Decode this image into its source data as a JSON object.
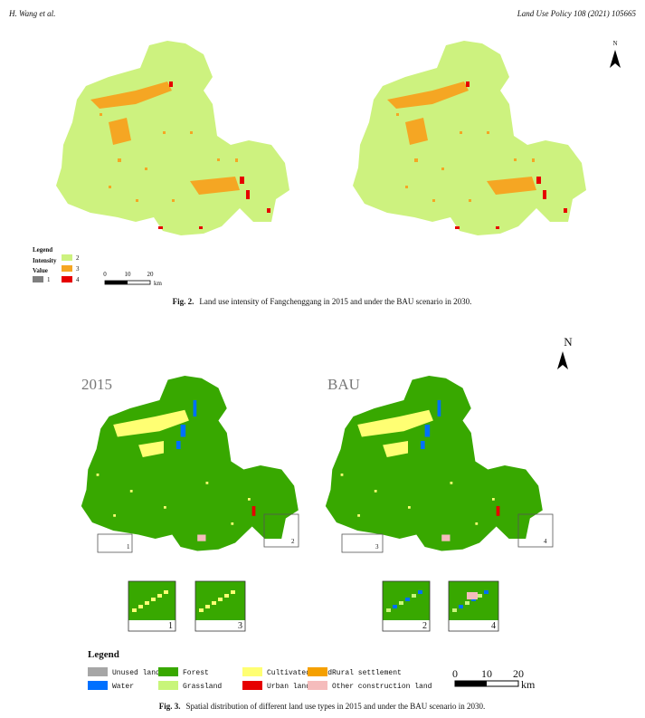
{
  "header": {
    "left": "H. Wang et al.",
    "right": "Land Use Policy 108 (2021) 105665"
  },
  "figure2": {
    "north": "N",
    "legend": {
      "title": "Legend",
      "intensity": "Intensity",
      "value": "Value",
      "items": [
        {
          "label": "1",
          "color": "#7f7f7f"
        },
        {
          "label": "2",
          "color": "#cdf27f"
        },
        {
          "label": "3",
          "color": "#f5a623"
        },
        {
          "label": "4",
          "color": "#e60000"
        }
      ]
    },
    "scale": {
      "ticks": [
        "0",
        "10",
        "20"
      ],
      "unit": "km"
    },
    "caption": {
      "label": "Fig. 2.",
      "text": "Land use intensity of Fangchenggang in 2015 and under the BAU scenario in 2030."
    }
  },
  "figure3": {
    "north": "N",
    "left_title": "2015",
    "right_title": "BAU",
    "map_boxes": [
      "1",
      "2",
      "3",
      "4"
    ],
    "insets": [
      "1",
      "3",
      "2",
      "4"
    ],
    "legend": {
      "title": "Legend",
      "items": [
        {
          "label": "Unused land",
          "color": "#a6a6a6"
        },
        {
          "label": "Forest",
          "color": "#38a800"
        },
        {
          "label": "Cultivated land",
          "color": "#ffff73"
        },
        {
          "label": "Rural settlement",
          "color": "#f5a000"
        },
        {
          "label": "Water",
          "color": "#0070ff"
        },
        {
          "label": "Grassland",
          "color": "#c8f57a"
        },
        {
          "label": "Urban land",
          "color": "#e60000"
        },
        {
          "label": "Other construction land",
          "color": "#f5bcbc"
        }
      ]
    },
    "scale": {
      "ticks": [
        "0",
        "10",
        "20"
      ],
      "unit": "km"
    },
    "caption": {
      "label": "Fig. 3.",
      "text": "Spatial distribution of different land use types in 2015 and under the BAU scenario in 2030."
    }
  }
}
